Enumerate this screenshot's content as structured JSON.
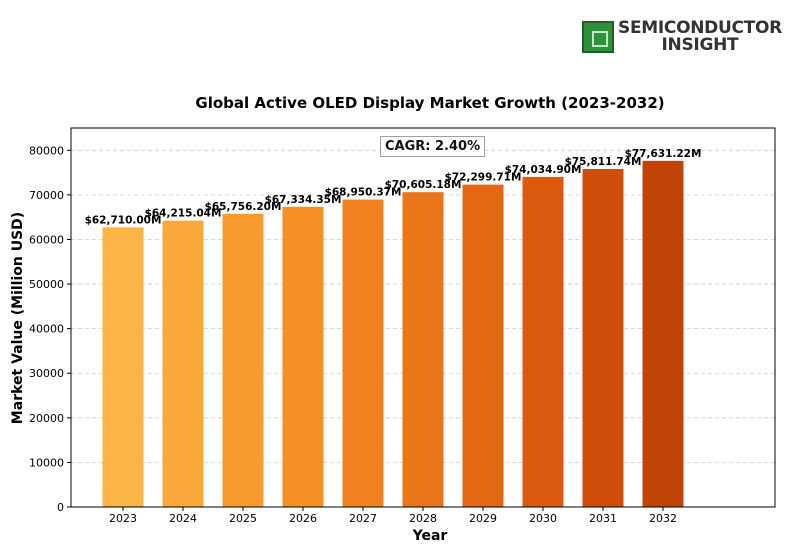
{
  "brand": {
    "line1": "SEMICONDUCTOR",
    "line2": "INSIGHT"
  },
  "annotation": "CAGR: 2.40%",
  "chart_data": {
    "type": "bar",
    "title": "Global Active OLED Display Market Growth (2023-2032)",
    "xlabel": "Year",
    "ylabel": "Market Value (Million USD)",
    "ylim": [
      0,
      85000
    ],
    "yticks": [
      0,
      10000,
      20000,
      30000,
      40000,
      50000,
      60000,
      70000,
      80000
    ],
    "grid": "horizontal dashed",
    "categories": [
      "2023",
      "2024",
      "2025",
      "2026",
      "2027",
      "2028",
      "2029",
      "2030",
      "2031",
      "2032"
    ],
    "values": [
      62710.0,
      64215.04,
      65756.2,
      67334.35,
      68950.37,
      70605.18,
      72299.71,
      74034.9,
      75811.74,
      77631.22
    ],
    "data_labels": [
      "$62,710.00M",
      "$64,215.04M",
      "$65,756.20M",
      "$67,334.35M",
      "$68,950.37M",
      "$70,605.18M",
      "$72,299.71M",
      "$74,034.90M",
      "$75,811.74M",
      "$77,631.22M"
    ],
    "colors": [
      "#fbb445",
      "#fba83a",
      "#f99a2e",
      "#f68f25",
      "#f1821e",
      "#eb7519",
      "#e46714",
      "#db5a0e",
      "#cf4c09",
      "#c04406"
    ]
  }
}
